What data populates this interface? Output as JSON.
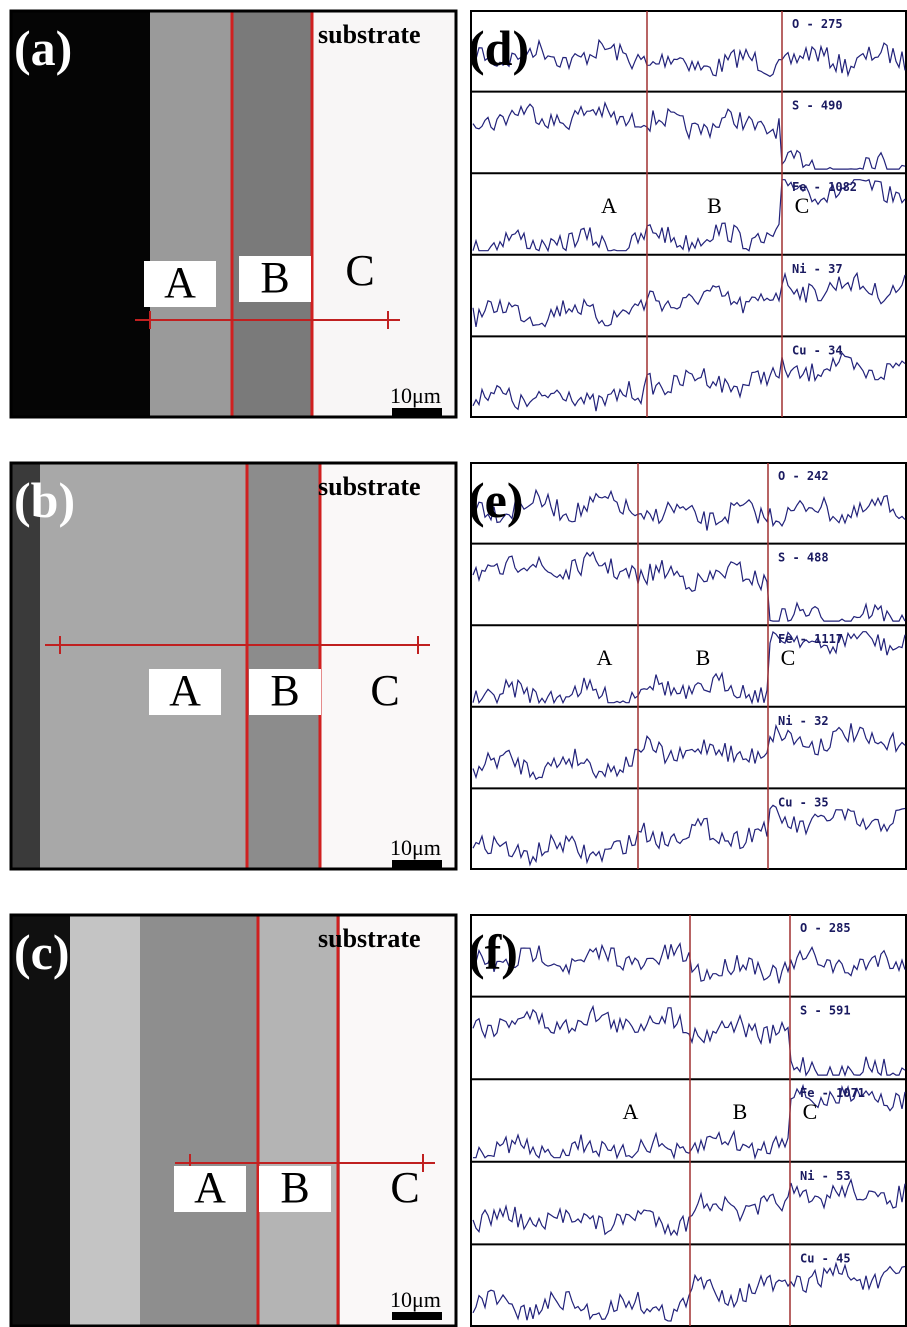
{
  "panels": [
    {
      "label": "(a)",
      "substrate": "substrate",
      "zones": [
        "A",
        "B",
        "C"
      ],
      "scale": "10μm"
    },
    {
      "label": "(b)",
      "substrate": "substrate",
      "zones": [
        "A",
        "B",
        "C"
      ],
      "scale": "10μm"
    },
    {
      "label": "(c)",
      "substrate": "substrate",
      "zones": [
        "A",
        "B",
        "C"
      ],
      "scale": "10μm"
    }
  ],
  "linescans": [
    {
      "label": "(d)",
      "elements": [
        "O - 275",
        "S - 490",
        "Fe - 1082",
        "Ni - 37",
        "Cu - 34"
      ],
      "zones": [
        "A",
        "B",
        "C"
      ]
    },
    {
      "label": "(e)",
      "elements": [
        "O - 242",
        "S - 488",
        "Fe - 1117",
        "Ni - 32",
        "Cu - 35"
      ],
      "zones": [
        "A",
        "B",
        "C"
      ]
    },
    {
      "label": "(f)",
      "elements": [
        "O - 285",
        "S - 591",
        "Fe - 1071",
        "Ni - 53",
        "Cu - 45"
      ],
      "zones": [
        "A",
        "B",
        "C"
      ]
    }
  ]
}
